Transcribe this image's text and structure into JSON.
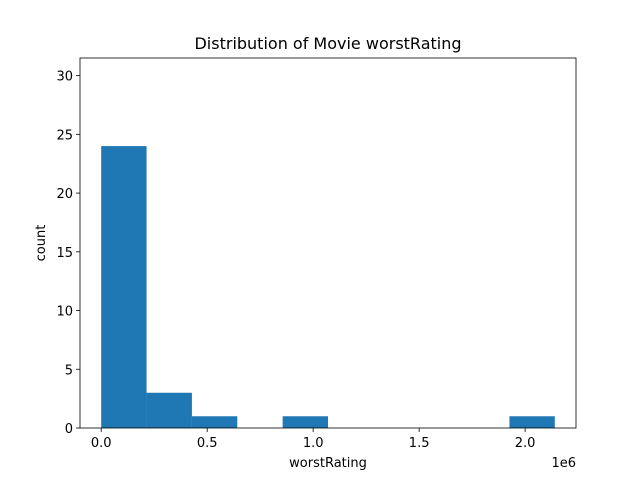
{
  "chart_data": {
    "type": "bar",
    "title": "Distribution of Movie worstRating",
    "xlabel": "worstRating",
    "ylabel": "count",
    "x_offset_label": "1e6",
    "bin_edges": [
      0,
      214000,
      428000,
      642000,
      856000,
      1070000,
      1284000,
      1498000,
      1712000,
      1926000,
      2140000
    ],
    "counts": [
      24,
      3,
      1,
      0,
      1,
      0,
      0,
      0,
      0,
      1
    ],
    "xlim": [
      -100000,
      2240000
    ],
    "ylim": [
      0,
      31.5
    ],
    "x_ticks": [
      {
        "value": 0,
        "label": "0.0"
      },
      {
        "value": 500000,
        "label": "0.5"
      },
      {
        "value": 1000000,
        "label": "1.0"
      },
      {
        "value": 1500000,
        "label": "1.5"
      },
      {
        "value": 2000000,
        "label": "2.0"
      }
    ],
    "y_ticks": [
      {
        "value": 0,
        "label": "0"
      },
      {
        "value": 5,
        "label": "5"
      },
      {
        "value": 10,
        "label": "10"
      },
      {
        "value": 15,
        "label": "15"
      },
      {
        "value": 20,
        "label": "20"
      },
      {
        "value": 25,
        "label": "25"
      },
      {
        "value": 30,
        "label": "30"
      }
    ],
    "bar_color": "#1f77b4",
    "grid": false
  }
}
